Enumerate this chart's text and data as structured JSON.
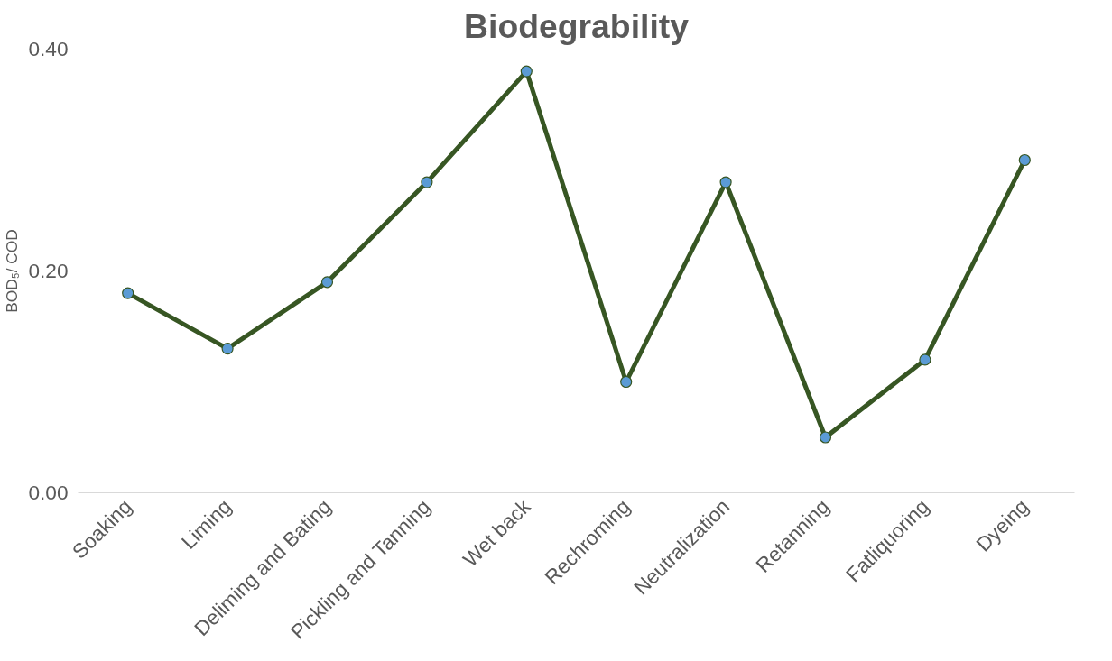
{
  "chart_data": {
    "type": "line",
    "title": "Biodegrability",
    "ylabel": "BOD₅/ COD",
    "categories": [
      "Soaking",
      "Liming",
      "Deliming and Bating",
      "Pickling and Tanning",
      "Wet back",
      "Rechroming",
      "Neutralization",
      "Retanning",
      "Fatliquoring",
      "Dyeing"
    ],
    "series": [
      {
        "color": "#375623",
        "values": [
          0.18,
          0.13,
          0.19,
          0.28,
          0.38,
          0.1,
          0.28,
          0.05,
          0.12,
          0.3
        ]
      }
    ],
    "ylim": [
      0,
      0.4
    ],
    "yticks": [
      {
        "value": 0,
        "label": "0.00"
      },
      {
        "value": 0.2,
        "label": "0.20"
      },
      {
        "value": 0.4,
        "label": "0.40"
      }
    ],
    "grid": "y",
    "marker": "circle",
    "line_style": "solid"
  }
}
